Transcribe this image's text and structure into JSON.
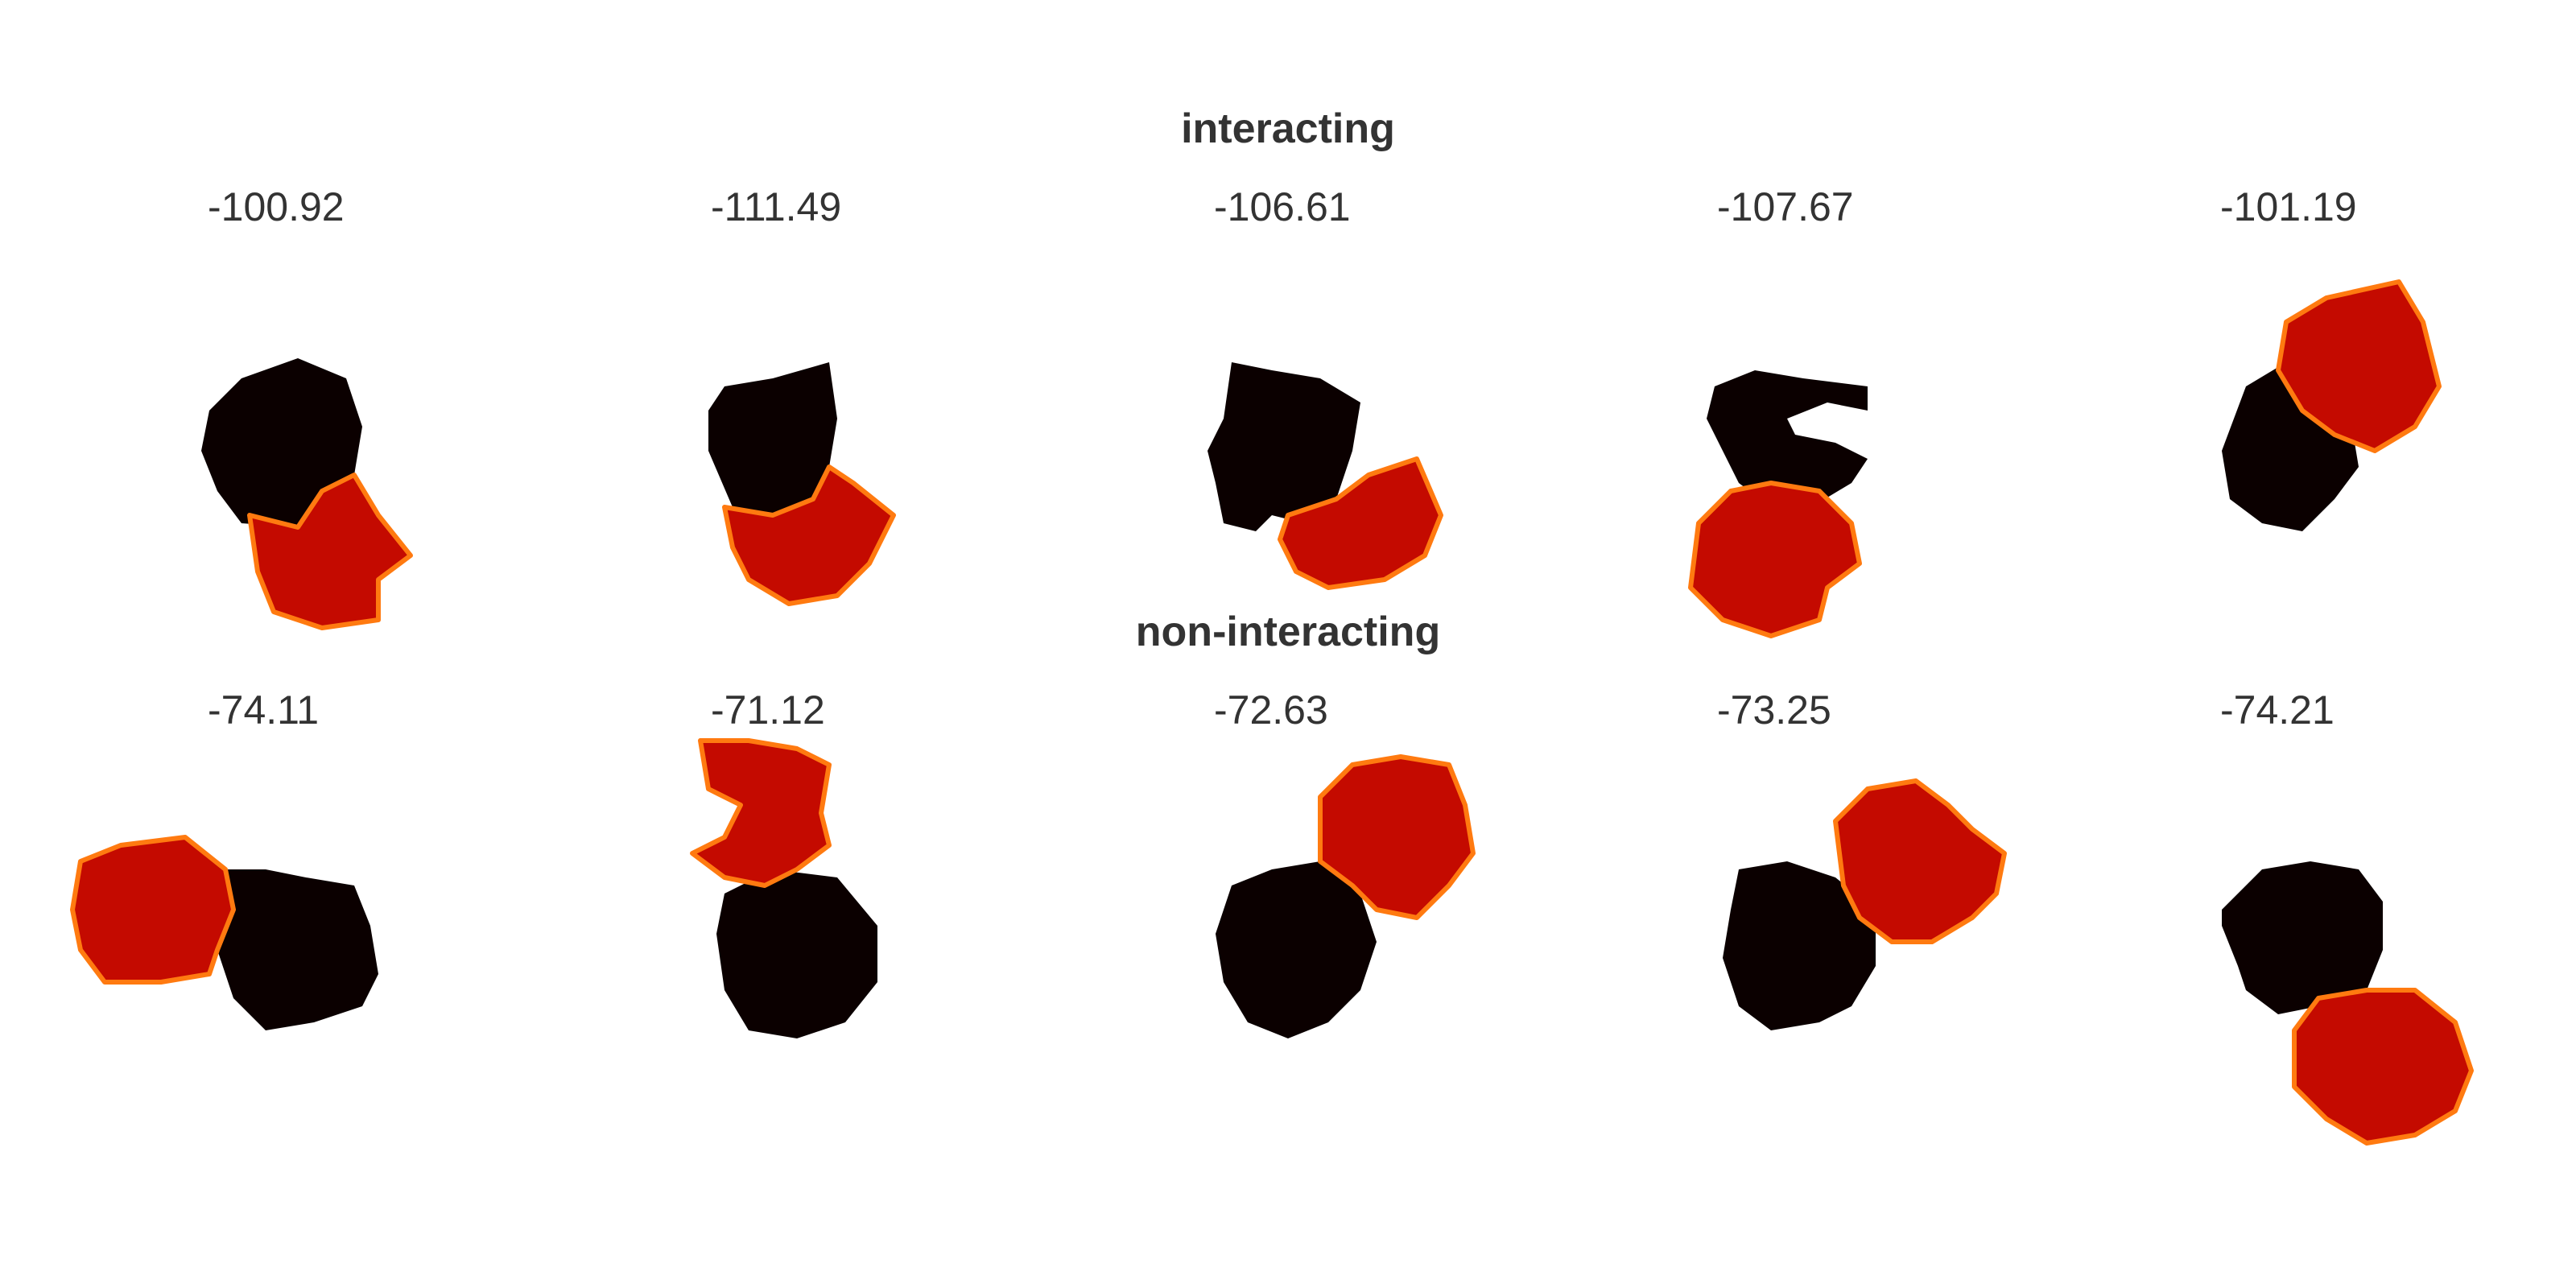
{
  "sections": [
    {
      "title": "interacting",
      "panels": [
        {
          "score": "-100.92"
        },
        {
          "score": "-111.49"
        },
        {
          "score": "-106.61"
        },
        {
          "score": "-107.67"
        },
        {
          "score": "-101.19"
        }
      ]
    },
    {
      "title": "non-interacting",
      "panels": [
        {
          "score": "-74.11"
        },
        {
          "score": "-71.12"
        },
        {
          "score": "-72.63"
        },
        {
          "score": "-73.25"
        },
        {
          "score": "-74.21"
        }
      ]
    }
  ],
  "colors": {
    "cell_black": "#0b0000",
    "cell_red": "#c40a00",
    "contact_orange": "#ff7a10",
    "text": "#333333"
  }
}
